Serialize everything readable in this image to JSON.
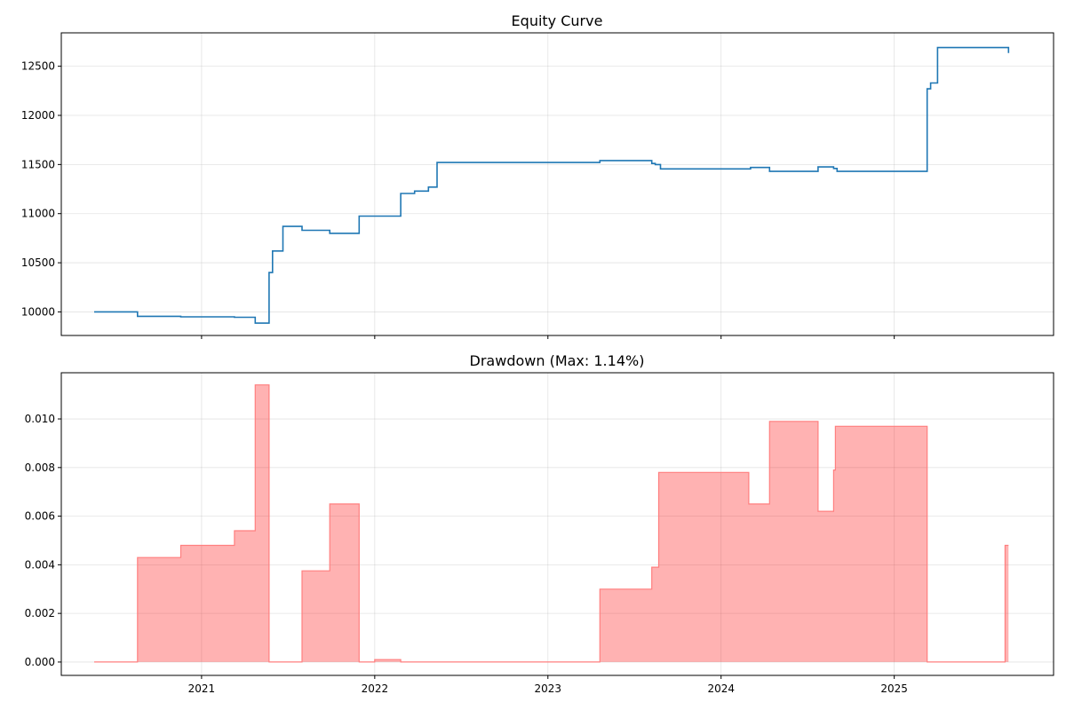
{
  "chart_data": [
    {
      "type": "line",
      "title": "Equity Curve",
      "xlabel": "",
      "ylabel": "",
      "xlim": [
        2020.19,
        2025.92
      ],
      "ylim": [
        9760,
        12840
      ],
      "grid": true,
      "color": "#1f77b4",
      "yticks": [
        10000,
        10500,
        11000,
        11500,
        12000,
        12500
      ],
      "xticks": [
        2021,
        2022,
        2023,
        2024,
        2025
      ],
      "x": [
        2020.38,
        2020.63,
        2020.88,
        2021.19,
        2021.31,
        2021.39,
        2021.41,
        2021.47,
        2021.58,
        2021.74,
        2021.91,
        2022.15,
        2022.23,
        2022.31,
        2022.36,
        2023.3,
        2023.6,
        2023.62,
        2023.65,
        2024.17,
        2024.28,
        2024.56,
        2024.65,
        2024.67,
        2025.19,
        2025.21,
        2025.25,
        2025.64,
        2025.66
      ],
      "values": [
        10000,
        9955,
        9950,
        9945,
        9886,
        10400,
        10620,
        10870,
        10830,
        10800,
        10975,
        11205,
        11230,
        11270,
        11520,
        11540,
        11510,
        11500,
        11455,
        11470,
        11430,
        11475,
        11460,
        11430,
        12270,
        12330,
        12690,
        12690,
        12635
      ]
    },
    {
      "type": "area",
      "title": "Drawdown (Max: 1.14%)",
      "xlabel": "",
      "ylabel": "",
      "xlim": [
        2020.19,
        2025.92
      ],
      "ylim": [
        -0.00055,
        0.0119
      ],
      "grid": true,
      "color": "#ff7f7f",
      "yticks": [
        "0.000",
        "0.002",
        "0.004",
        "0.006",
        "0.008",
        "0.010"
      ],
      "xticks": [
        2021,
        2022,
        2023,
        2024,
        2025
      ],
      "x": [
        2020.38,
        2020.63,
        2020.88,
        2021.19,
        2021.31,
        2021.39,
        2021.58,
        2021.74,
        2021.91,
        2022.0,
        2022.15,
        2023.3,
        2023.6,
        2023.64,
        2024.16,
        2024.28,
        2024.56,
        2024.65,
        2024.66,
        2025.19,
        2025.64,
        2025.66
      ],
      "values": [
        0.0,
        0.0043,
        0.0048,
        0.0054,
        0.0114,
        0.0,
        0.00375,
        0.0065,
        0.0,
        0.0001,
        0.0,
        0.003,
        0.0039,
        0.0078,
        0.0065,
        0.0099,
        0.0062,
        0.0079,
        0.0097,
        0.0,
        0.0048,
        0.0048
      ]
    }
  ]
}
